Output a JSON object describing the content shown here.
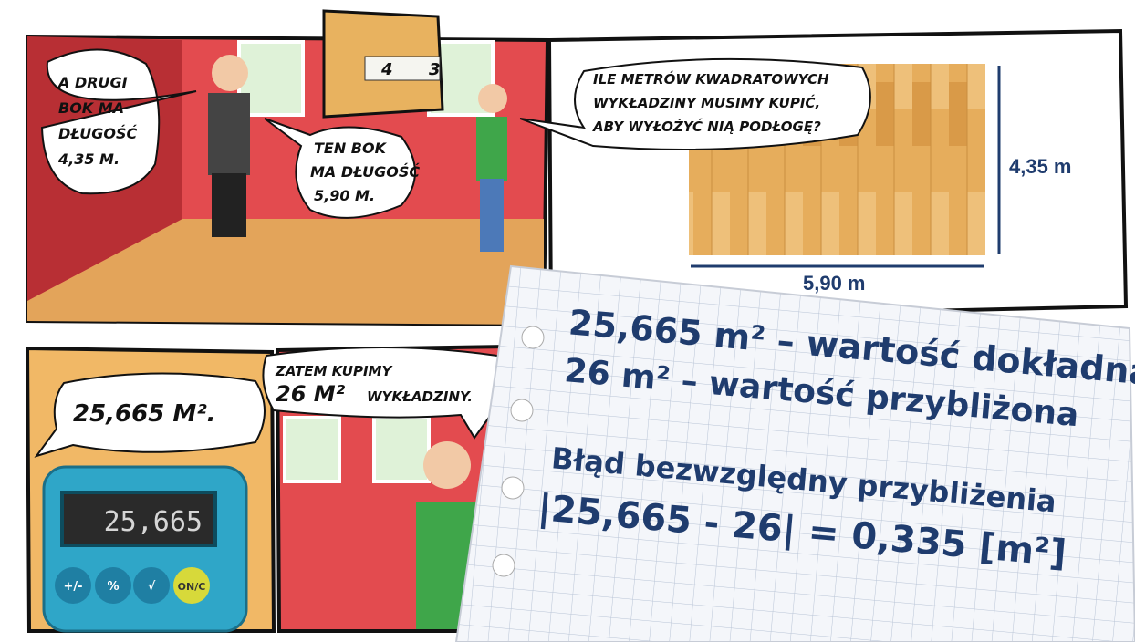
{
  "panel1": {
    "bubble_left": [
      "A DRUGI",
      "BOK MA",
      "DŁUGOŚĆ",
      "4,35 M."
    ],
    "bubble_right": [
      "TEN BOK",
      "MA DŁUGOŚĆ",
      "5,90 M."
    ],
    "tape": [
      "4",
      "3"
    ]
  },
  "panel2": {
    "bubble": [
      "ILE METRÓW KWADRATOWYCH",
      "WYKŁADZINY MUSIMY KUPIĆ,",
      "ABY WYŁOŻYĆ NIĄ PODŁOGĘ?"
    ],
    "height_label": "4,35 m",
    "width_label": "5,90 m"
  },
  "panel3": {
    "bubble": "25,665 M².",
    "display": "25,665",
    "buttons": [
      "+/-",
      "%",
      "√",
      "ON/C"
    ]
  },
  "panel4": {
    "bubble": [
      "ZATEM KUPIMY",
      "26 M²",
      "WYKŁADZINY."
    ]
  },
  "note": {
    "lines": [
      "25,665 m² – wartość dokładna",
      "26 m² – wartość przybliżona",
      "Błąd bezwzględny przybliżenia",
      "|25,665 - 26| = 0,335 [m²]"
    ]
  }
}
